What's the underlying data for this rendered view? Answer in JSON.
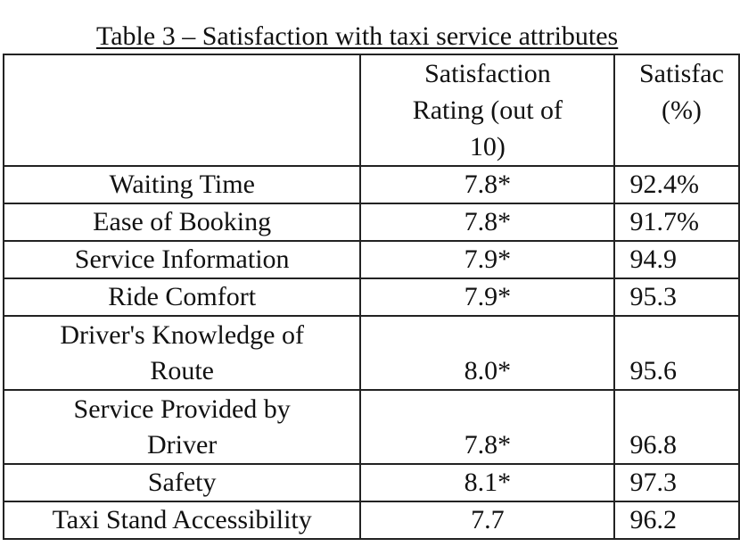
{
  "caption": "Table 3 – Satisfaction with taxi service attributes",
  "columns": {
    "attribute": "",
    "rating": "Satisfaction Rating (out of 10)",
    "percent": "Satisfac (%)"
  },
  "rows": [
    {
      "attribute": "Waiting Time",
      "rating": "7.8*",
      "percent": "92.4%"
    },
    {
      "attribute": "Ease of Booking",
      "rating": "7.8*",
      "percent": "91.7%"
    },
    {
      "attribute": "Service Information",
      "rating": "7.9*",
      "percent": "94.9"
    },
    {
      "attribute": "Ride Comfort",
      "rating": "7.9*",
      "percent": "95.3"
    },
    {
      "attribute": "Driver's Knowledge of Route",
      "rating": "8.0*",
      "percent": "95.6"
    },
    {
      "attribute": "Service Provided by Driver",
      "rating": "7.8*",
      "percent": "96.8"
    },
    {
      "attribute": "Safety",
      "rating": "8.1*",
      "percent": "97.3"
    },
    {
      "attribute": "Taxi Stand Accessibility",
      "rating": "7.7",
      "percent": "96.2"
    }
  ]
}
